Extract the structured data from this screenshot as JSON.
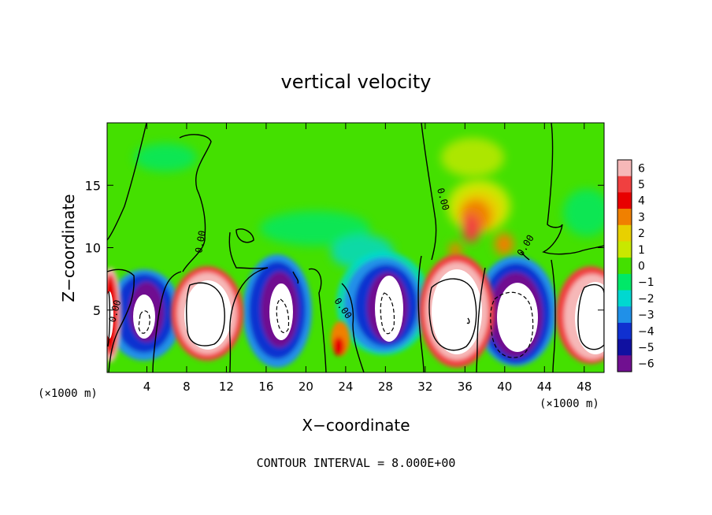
{
  "chart_data": {
    "type": "heatmap",
    "title": "vertical velocity",
    "xlabel": "X−coordinate",
    "ylabel": "Z−coordinate",
    "x_unit": "(×1000 m)",
    "x_unit_right": "(×1000 m)",
    "xlim": [
      0,
      50
    ],
    "ylim": [
      0,
      20
    ],
    "x_ticks": [
      4,
      8,
      12,
      16,
      20,
      24,
      28,
      32,
      36,
      40,
      44,
      48
    ],
    "y_ticks": [
      5,
      10,
      15
    ],
    "colorbar": {
      "levels": [
        6,
        5,
        4,
        3,
        2,
        1,
        0,
        -1,
        -2,
        -3,
        -4,
        -5,
        -6
      ],
      "labels": [
        "6",
        "5",
        "4",
        "3",
        "2",
        "1",
        "0",
        "−1",
        "−2",
        "−3",
        "−4",
        "−5",
        "−6"
      ],
      "colors": [
        "#f6b8b8",
        "#f04040",
        "#e80000",
        "#f08000",
        "#e8d000",
        "#c8e800",
        "#44e000",
        "#00e868",
        "#00d8d0",
        "#2090e8",
        "#1030d0",
        "#1010a0",
        "#701090"
      ]
    },
    "contour_label": "0.00",
    "footer": "CONTOUR INTERVAL = 8.000E+00",
    "cells": [
      {
        "x": 0.3,
        "z": 5.2,
        "w": 7.0,
        "note": "updraft"
      },
      {
        "x": 3.6,
        "z": 4.8,
        "w": -7.0,
        "note": "downdraft"
      },
      {
        "x": 9.7,
        "z": 5.3,
        "w": 8.0,
        "note": "updraft"
      },
      {
        "x": 17.0,
        "z": 5.0,
        "w": -7.5,
        "note": "downdraft"
      },
      {
        "x": 23.7,
        "z": 2.5,
        "w": 3.0,
        "note": "updraft"
      },
      {
        "x": 28.0,
        "z": 5.5,
        "w": -7.5,
        "note": "downdraft"
      },
      {
        "x": 35.0,
        "z": 5.0,
        "w": 9.0,
        "note": "updraft"
      },
      {
        "x": 41.0,
        "z": 4.5,
        "w": -8.0,
        "note": "downdraft"
      },
      {
        "x": 48.3,
        "z": 5.0,
        "w": 8.0,
        "note": "updraft"
      },
      {
        "x": 37.0,
        "z": 12.0,
        "w": 4.0,
        "note": "upper updraft"
      }
    ]
  }
}
